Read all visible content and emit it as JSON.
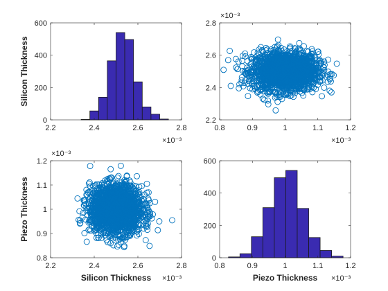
{
  "figure": {
    "bar_color": "#3a2bb1",
    "marker_color": "#0072bd",
    "axis_color": "#262626"
  },
  "chart_data": [
    {
      "id": "hist_silicon",
      "type": "bar",
      "xlim": [
        0.0022,
        0.0028
      ],
      "ylim": [
        0,
        600
      ],
      "xticks": [
        "2.2",
        "2.4",
        "2.6",
        "2.8"
      ],
      "yticks": [
        "0",
        "200",
        "400",
        "600"
      ],
      "x_exponent": "×10⁻³",
      "y_exponent": "",
      "xlabel": "",
      "ylabel": "Silicon Thickness",
      "bin_edges": [
        0.00234,
        0.00238,
        0.00242,
        0.00246,
        0.0025,
        0.00254,
        0.00258,
        0.00262,
        0.00266,
        0.0027,
        0.00274
      ],
      "values": [
        3,
        55,
        140,
        365,
        540,
        497,
        235,
        80,
        35,
        5
      ]
    },
    {
      "id": "scatter_piezo_vs_silicon",
      "type": "scatter",
      "xlim": [
        0.0008,
        0.0012
      ],
      "ylim": [
        0.0022,
        0.0028
      ],
      "xticks": [
        "0.8",
        "0.9",
        "1",
        "1.1",
        "1.2"
      ],
      "yticks": [
        "2.2",
        "2.4",
        "2.6",
        "2.8"
      ],
      "x_exponent": "×10⁻³",
      "y_exponent": "×10⁻³",
      "xlabel": "",
      "ylabel": "",
      "distribution": {
        "x_mean": 0.001,
        "x_std": 5e-05,
        "y_mean": 0.0025,
        "y_std": 6e-05,
        "n": 2000
      }
    },
    {
      "id": "scatter_silicon_vs_piezo",
      "type": "scatter",
      "xlim": [
        0.0022,
        0.0028
      ],
      "ylim": [
        0.0008,
        0.0012
      ],
      "xticks": [
        "2.2",
        "2.4",
        "2.6",
        "2.8"
      ],
      "yticks": [
        "0.8",
        "0.9",
        "1",
        "1.1",
        "1.2"
      ],
      "x_exponent": "×10⁻³",
      "y_exponent": "×10⁻³",
      "xlabel": "Silicon Thickness",
      "ylabel": "Piezo Thickness",
      "distribution": {
        "x_mean": 0.0025,
        "x_std": 6e-05,
        "y_mean": 0.001,
        "y_std": 5e-05,
        "n": 2000
      }
    },
    {
      "id": "hist_piezo",
      "type": "bar",
      "xlim": [
        0.0008,
        0.0012
      ],
      "ylim": [
        0,
        600
      ],
      "xticks": [
        "0.8",
        "0.9",
        "1",
        "1.1",
        "1.2"
      ],
      "yticks": [
        "0",
        "200",
        "400",
        "600"
      ],
      "x_exponent": "×10⁻³",
      "y_exponent": "",
      "xlabel": "Piezo Thickness",
      "ylabel": "",
      "bin_edges": [
        0.000827,
        0.000862,
        0.000897,
        0.000932,
        0.000967,
        0.001002,
        0.001037,
        0.001072,
        0.001107,
        0.001142,
        0.001177
      ],
      "values": [
        5,
        25,
        130,
        310,
        495,
        540,
        305,
        125,
        45,
        10
      ]
    }
  ]
}
